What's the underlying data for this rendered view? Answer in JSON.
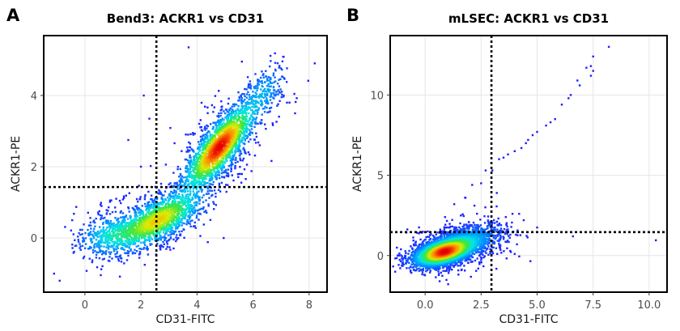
{
  "chart_data": [
    {
      "type": "scatter",
      "panel_label": "A",
      "title": "Bend3: ACKR1 vs CD31",
      "xlabel": "CD31-FITC",
      "ylabel": "ACKR1-PE",
      "xlim": [
        -1.47,
        8.64
      ],
      "ylim": [
        -1.52,
        5.68
      ],
      "xticks": [
        0,
        2,
        4,
        6,
        8
      ],
      "xtick_labels": [
        "0",
        "2",
        "4",
        "6",
        "8"
      ],
      "yticks": [
        0,
        2,
        4
      ],
      "ytick_labels": [
        "0",
        "2",
        "4"
      ],
      "grid": true,
      "color_scale": "density (blue-low to red-high)",
      "gate_lines": {
        "x": 2.55,
        "y": 1.43,
        "style": "dotted",
        "color": "#000000"
      },
      "density_populations": [
        {
          "center": [
            4.8,
            2.55
          ],
          "slope": 0.95,
          "spread_major": 0.85,
          "spread_minor": 0.28,
          "weight": 0.5
        },
        {
          "center": [
            2.6,
            0.5
          ],
          "slope": 0.4,
          "spread_major": 0.85,
          "spread_minor": 0.28,
          "weight": 0.35
        },
        {
          "center": [
            0.9,
            0.1
          ],
          "slope": 0.2,
          "spread_major": 0.6,
          "spread_minor": 0.28,
          "weight": 0.1
        },
        {
          "center": [
            6.4,
            4.1
          ],
          "slope": 1.0,
          "spread_major": 0.5,
          "spread_minor": 0.3,
          "weight": 0.05
        }
      ],
      "outliers": [
        [
          3.7,
          5.35
        ],
        [
          5.6,
          4.95
        ],
        [
          8.2,
          4.9
        ],
        [
          2.1,
          4.0
        ],
        [
          2.3,
          3.35
        ],
        [
          1.55,
          2.75
        ],
        [
          4.95,
          0.0
        ],
        [
          2.0,
          2.0
        ],
        [
          -1.1,
          -1.0
        ],
        [
          -0.9,
          -1.2
        ],
        [
          7.5,
          3.5
        ],
        [
          7.3,
          3.8
        ]
      ]
    },
    {
      "type": "scatter",
      "panel_label": "B",
      "title": "mLSEC: ACKR1 vs CD31",
      "xlabel": "CD31-FITC",
      "ylabel": "ACKR1-PE",
      "xlim": [
        -1.56,
        10.8
      ],
      "ylim": [
        -2.28,
        13.7
      ],
      "xticks": [
        0,
        2.5,
        5,
        7.5,
        10
      ],
      "xtick_labels": [
        "0.0",
        "2.5",
        "5.0",
        "7.5",
        "10.0"
      ],
      "yticks": [
        0,
        5,
        10
      ],
      "ytick_labels": [
        "0",
        "5",
        "10"
      ],
      "grid": true,
      "color_scale": "density (blue-low to red-high)",
      "gate_lines": {
        "x": 2.96,
        "y": 1.46,
        "style": "dotted",
        "color": "#000000"
      },
      "density_populations": [
        {
          "center": [
            0.8,
            0.2
          ],
          "slope": 0.45,
          "spread_major": 0.7,
          "spread_minor": 0.35,
          "weight": 0.65
        },
        {
          "center": [
            1.6,
            0.7
          ],
          "slope": 0.5,
          "spread_major": 1.0,
          "spread_minor": 0.45,
          "weight": 0.35
        }
      ],
      "outliers": [
        [
          8.2,
          13.0
        ],
        [
          7.5,
          12.4
        ],
        [
          7.4,
          11.8
        ],
        [
          7.5,
          11.5
        ],
        [
          7.2,
          11.7
        ],
        [
          7.4,
          11.2
        ],
        [
          6.8,
          10.9
        ],
        [
          6.9,
          10.6
        ],
        [
          6.5,
          10.0
        ],
        [
          6.4,
          9.8
        ],
        [
          6.1,
          9.4
        ],
        [
          5.8,
          8.5
        ],
        [
          5.6,
          8.3
        ],
        [
          5.4,
          8.1
        ],
        [
          5.0,
          7.7
        ],
        [
          4.8,
          7.5
        ],
        [
          4.6,
          7.2
        ],
        [
          4.5,
          7.0
        ],
        [
          4.3,
          6.7
        ],
        [
          4.0,
          6.5
        ],
        [
          3.7,
          6.3
        ],
        [
          3.5,
          6.1
        ],
        [
          3.3,
          6.0
        ],
        [
          2.7,
          5.3
        ],
        [
          3.0,
          5.3
        ],
        [
          2.5,
          4.5
        ],
        [
          2.1,
          4.4
        ],
        [
          3.2,
          3.9
        ],
        [
          1.8,
          3.6
        ],
        [
          1.3,
          3.2
        ],
        [
          10.3,
          0.95
        ],
        [
          6.6,
          1.2
        ],
        [
          4.7,
          -0.35
        ],
        [
          5.0,
          1.75
        ],
        [
          4.2,
          -0.05
        ],
        [
          4.0,
          0.1
        ],
        [
          3.9,
          2.6
        ],
        [
          3.6,
          2.4
        ],
        [
          4.4,
          2.2
        ],
        [
          4.1,
          0.7
        ]
      ]
    }
  ]
}
